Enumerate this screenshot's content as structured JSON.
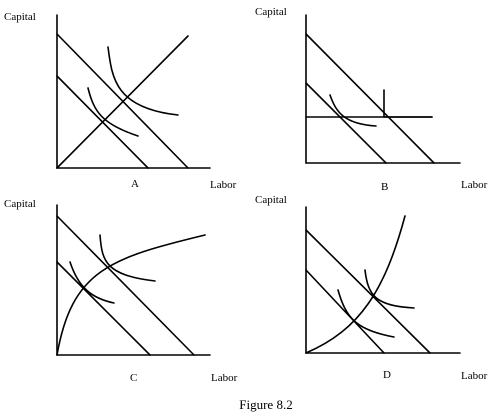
{
  "panels": [
    {
      "letter": "A",
      "y_label": "Capital",
      "x_label": "Labor"
    },
    {
      "letter": "B",
      "y_label": "Capital",
      "x_label": "Labor"
    },
    {
      "letter": "C",
      "y_label": "Capital",
      "x_label": "Labor"
    },
    {
      "letter": "D",
      "y_label": "Capital",
      "x_label": "Labor"
    }
  ],
  "caption": "Figure 8.2"
}
